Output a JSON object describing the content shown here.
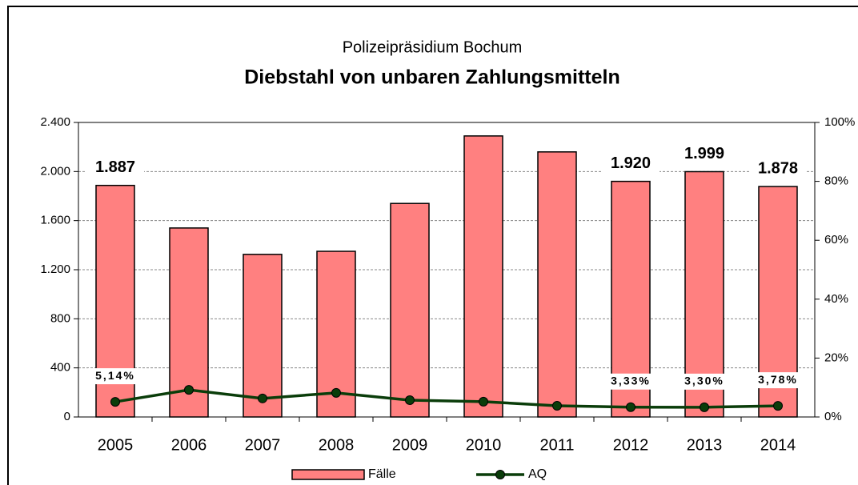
{
  "chart_data": {
    "type": "bar",
    "subtitle": "Polizeipräsidium Bochum",
    "title": "Diebstahl von unbaren Zahlungsmitteln",
    "categories": [
      "2005",
      "2006",
      "2007",
      "2008",
      "2009",
      "2010",
      "2011",
      "2012",
      "2013",
      "2014"
    ],
    "series": [
      {
        "name": "Fälle",
        "type": "bar",
        "color": "#ff8080",
        "values": [
          1887,
          1540,
          1325,
          1350,
          1740,
          2290,
          2160,
          1920,
          1999,
          1878
        ],
        "value_labels": [
          "1.887",
          null,
          null,
          null,
          null,
          null,
          null,
          "1.920",
          "1.999",
          "1.878"
        ]
      },
      {
        "name": "AQ",
        "type": "line",
        "axis": "y2",
        "color": "#0a3d0a",
        "values": [
          5.14,
          9.2,
          6.3,
          8.2,
          5.7,
          5.2,
          3.8,
          3.33,
          3.3,
          3.78
        ],
        "value_labels": [
          "5,14%",
          null,
          null,
          null,
          null,
          null,
          null,
          "3,33%",
          "3,30%",
          "3,78%"
        ]
      }
    ],
    "ylim": [
      0,
      2400
    ],
    "yticks": [
      0,
      400,
      800,
      {
        "value": 1200,
        "label": "1.200"
      },
      {
        "value": 1600,
        "label": "1.600"
      },
      {
        "value": 2000,
        "label": "2.000"
      },
      {
        "value": 2400,
        "label": "2.400"
      }
    ],
    "y2lim": [
      0,
      100
    ],
    "y2ticks": [
      {
        "value": 0,
        "label": "0%"
      },
      {
        "value": 20,
        "label": "20%"
      },
      {
        "value": 40,
        "label": "40%"
      },
      {
        "value": 60,
        "label": "60%"
      },
      {
        "value": 80,
        "label": "80%"
      },
      {
        "value": 100,
        "label": "100%"
      }
    ],
    "grid": true,
    "legend": "bottom"
  }
}
